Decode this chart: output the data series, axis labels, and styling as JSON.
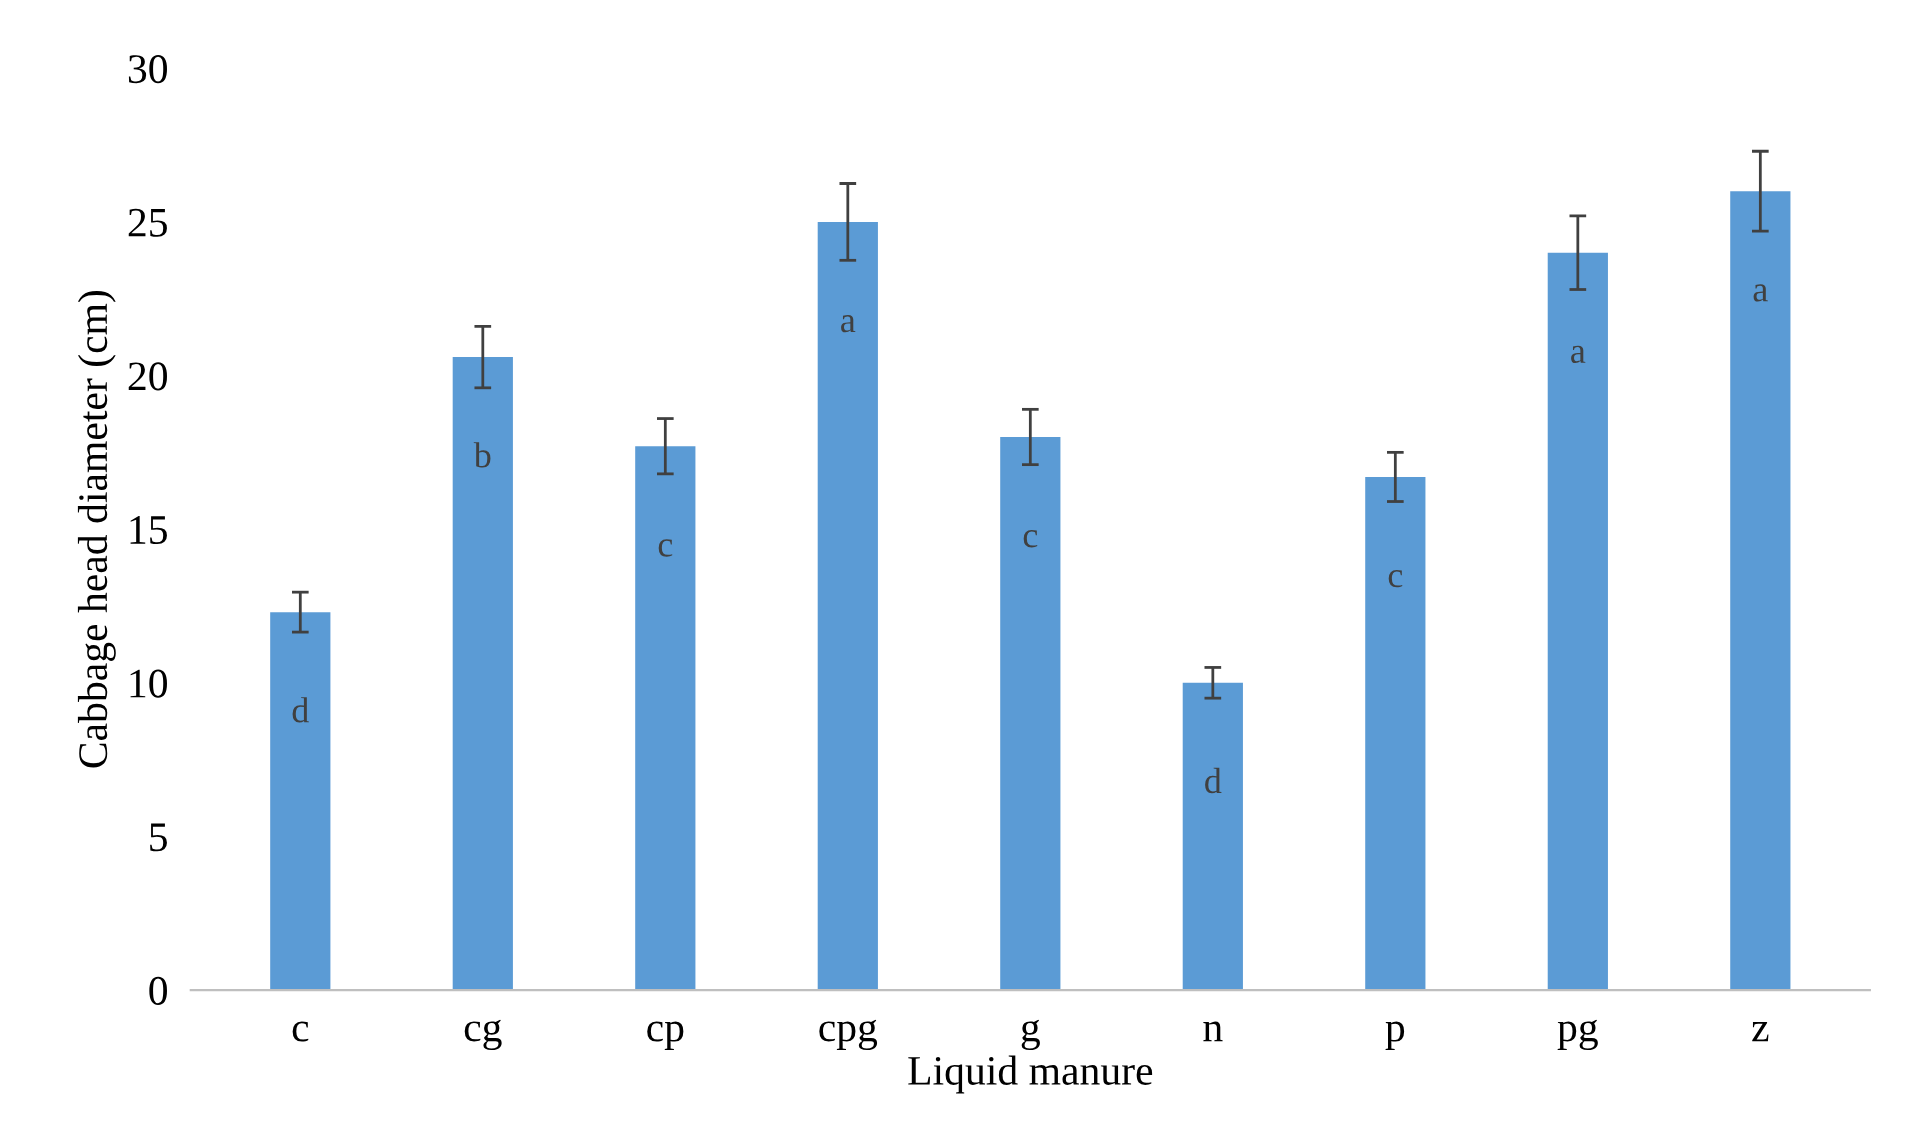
{
  "chart_data": {
    "type": "bar",
    "xlabel": "Liquid manure",
    "ylabel": "Cabbage head diameter (cm)",
    "categories": [
      "c",
      "cg",
      "cp",
      "cpg",
      "g",
      "n",
      "p",
      "pg",
      "z"
    ],
    "values": [
      12.3,
      20.6,
      17.7,
      25.0,
      18.0,
      10.0,
      16.7,
      24.0,
      26.0
    ],
    "errors": [
      0.65,
      1.0,
      0.9,
      1.25,
      0.9,
      0.5,
      0.8,
      1.2,
      1.3
    ],
    "color": "#5b9bd5",
    "ylim": [
      0,
      30
    ],
    "yticks": [
      0,
      5,
      10,
      15,
      20,
      25,
      30
    ],
    "grid": false,
    "legend": false,
    "annotations": [
      "d",
      "b",
      "c",
      "a",
      "c",
      "d",
      "c",
      "a",
      "a"
    ]
  }
}
